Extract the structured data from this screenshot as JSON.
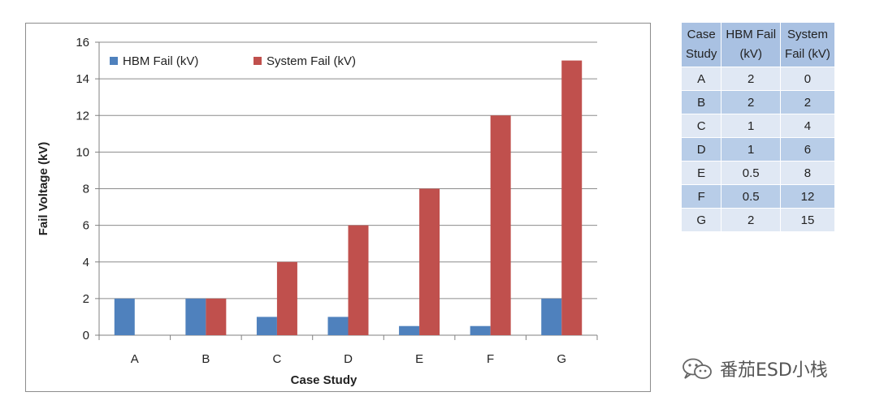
{
  "chart_data": {
    "type": "bar",
    "title": "",
    "xlabel": "Case Study",
    "ylabel": "Fail Voltage (kV)",
    "ylim": [
      0,
      16
    ],
    "yticks": [
      0,
      2,
      4,
      6,
      8,
      10,
      12,
      14,
      16
    ],
    "categories": [
      "A",
      "B",
      "C",
      "D",
      "E",
      "F",
      "G"
    ],
    "series": [
      {
        "name": "HBM Fail (kV)",
        "color": "#4f81bd",
        "values": [
          2,
          2,
          1,
          1,
          0.5,
          0.5,
          2
        ]
      },
      {
        "name": "System Fail (kV)",
        "color": "#c0504d",
        "values": [
          0,
          2,
          4,
          6,
          8,
          12,
          15
        ]
      }
    ],
    "legend": "top-left",
    "grid": true
  },
  "table": {
    "headers": [
      [
        "Case",
        "Study"
      ],
      [
        "HBM Fail",
        "(kV)"
      ],
      [
        "System",
        "Fail (kV)"
      ]
    ],
    "rows": [
      [
        "A",
        "2",
        "0"
      ],
      [
        "B",
        "2",
        "2"
      ],
      [
        "C",
        "1",
        "4"
      ],
      [
        "D",
        "1",
        "6"
      ],
      [
        "E",
        "0.5",
        "8"
      ],
      [
        "F",
        "0.5",
        "12"
      ],
      [
        "G",
        "2",
        "15"
      ]
    ]
  },
  "watermark": {
    "text": "番茄ESD小栈",
    "icon": "wechat-icon"
  }
}
